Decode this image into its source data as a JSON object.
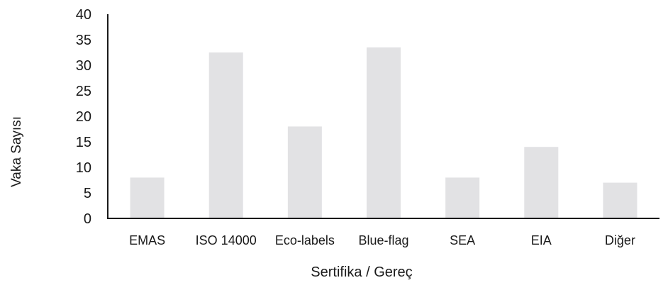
{
  "chart_data": {
    "type": "bar",
    "title": "",
    "xlabel": "Sertifika / Gereç",
    "ylabel": "Vaka Sayısı",
    "categories": [
      "EMAS",
      "ISO 14000",
      "Eco-labels",
      "Blue-flag",
      "SEA",
      "EIA",
      "Diğer"
    ],
    "values": [
      8,
      32.5,
      18,
      33.5,
      8,
      14,
      7
    ],
    "ylim": [
      0,
      40
    ],
    "yticks": [
      0,
      5,
      10,
      15,
      20,
      25,
      30,
      35,
      40
    ],
    "grid": false,
    "legend": "none",
    "bar_color": "#e2e2e4",
    "axis_color": "#1a1a1a"
  }
}
